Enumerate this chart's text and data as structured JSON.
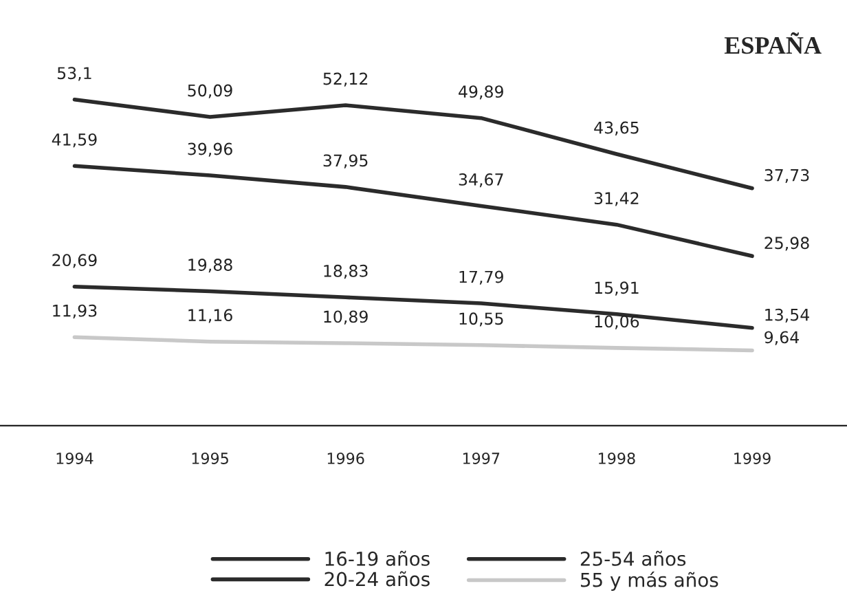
{
  "chart_data": {
    "type": "line",
    "title": "ESPAÑA",
    "categories": [
      "1994",
      "1995",
      "1996",
      "1997",
      "1998",
      "1999"
    ],
    "series": [
      {
        "name": "16-19 años",
        "color": "#2b2b2b",
        "values": [
          53.1,
          50.09,
          52.12,
          49.89,
          43.65,
          37.73
        ],
        "value_labels": [
          "53,1",
          "50,09",
          "52,12",
          "49,89",
          "43,65",
          "37,73"
        ]
      },
      {
        "name": "20-24 años",
        "color": "#2b2b2b",
        "values": [
          41.59,
          39.96,
          37.95,
          34.67,
          31.42,
          25.98
        ],
        "value_labels": [
          "41,59",
          "39,96",
          "37,95",
          "34,67",
          "31,42",
          "25,98"
        ]
      },
      {
        "name": "25-54 años",
        "color": "#2b2b2b",
        "values": [
          20.69,
          19.88,
          18.83,
          17.79,
          15.91,
          13.54
        ],
        "value_labels": [
          "20,69",
          "19,88",
          "18,83",
          "17,79",
          "15,91",
          "13,54"
        ]
      },
      {
        "name": "55 y más años",
        "color": "#c8c8c8",
        "values": [
          11.93,
          11.16,
          10.89,
          10.55,
          10.06,
          9.64
        ],
        "value_labels": [
          "11,93",
          "11,16",
          "10,89",
          "10,55",
          "10,06",
          "9,64"
        ]
      }
    ],
    "tick_labels": "x",
    "grid": false,
    "legend": "bottom",
    "marker": "none",
    "line_style": "solid"
  }
}
